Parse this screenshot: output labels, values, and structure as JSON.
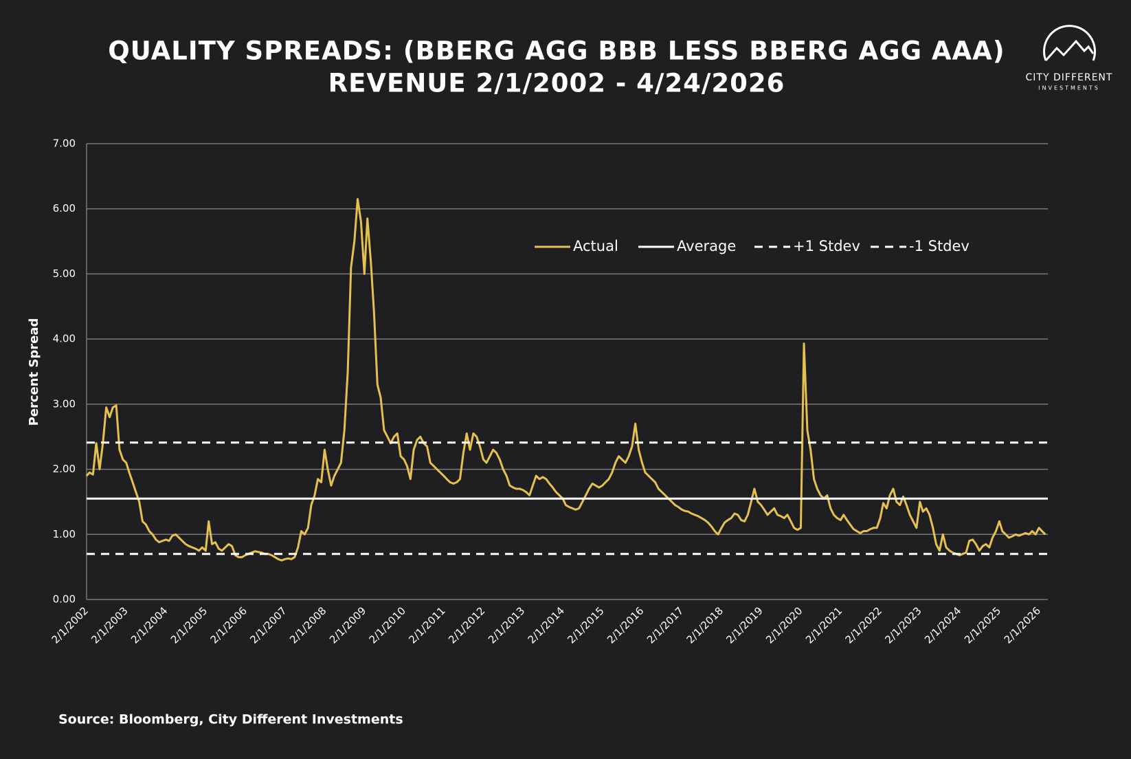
{
  "chart_data": {
    "type": "line",
    "title": "QUALITY SPREADS: (BBERG AGG BBB LESS BBERG AGG AAA)",
    "subtitle": "REVENUE 2/1/2002 - 4/24/2026",
    "y_label": "Percent Spread",
    "source": "Source: Bloomberg, City Different Investments",
    "logo": {
      "name": "CITY DIFFERENT",
      "sub": "INVESTMENTS"
    },
    "legend": "top-right",
    "grid": true,
    "ylim": [
      0,
      7
    ],
    "yticks": [
      {
        "value": 0,
        "label": "0.00"
      },
      {
        "value": 1,
        "label": "1.00"
      },
      {
        "value": 2,
        "label": "2.00"
      },
      {
        "value": 3,
        "label": "3.00"
      },
      {
        "value": 4,
        "label": "4.00"
      },
      {
        "value": 5,
        "label": "5.00"
      },
      {
        "value": 6,
        "label": "6.00"
      },
      {
        "value": 7,
        "label": "7.00"
      }
    ],
    "xlim": [
      "2/1/2002",
      "4/24/2026"
    ],
    "xticks": [
      "2/1/2002",
      "2/1/2003",
      "2/1/2004",
      "2/1/2005",
      "2/1/2006",
      "2/1/2007",
      "2/1/2008",
      "2/1/2009",
      "2/1/2010",
      "2/1/2011",
      "2/1/2012",
      "2/1/2013",
      "2/1/2014",
      "2/1/2015",
      "2/1/2016",
      "2/1/2017",
      "2/1/2018",
      "2/1/2019",
      "2/1/2020",
      "2/1/2021",
      "2/1/2022",
      "2/1/2023",
      "2/1/2024",
      "2/1/2025",
      "2/1/2026"
    ],
    "x": [
      "2/1/2002",
      "3/1/2002",
      "4/1/2002",
      "5/1/2002",
      "6/1/2002",
      "7/1/2002",
      "8/1/2002",
      "9/1/2002",
      "10/1/2002",
      "11/1/2002",
      "12/1/2002",
      "1/1/2003",
      "2/1/2003",
      "3/1/2003",
      "4/1/2003",
      "5/1/2003",
      "6/1/2003",
      "7/1/2003",
      "8/1/2003",
      "9/1/2003",
      "10/1/2003",
      "11/1/2003",
      "12/1/2003",
      "1/1/2004",
      "2/1/2004",
      "3/1/2004",
      "4/1/2004",
      "5/1/2004",
      "6/1/2004",
      "7/1/2004",
      "8/1/2004",
      "9/1/2004",
      "10/1/2004",
      "11/1/2004",
      "12/1/2004",
      "1/1/2005",
      "2/1/2005",
      "3/1/2005",
      "4/1/2005",
      "5/1/2005",
      "6/1/2005",
      "7/1/2005",
      "8/1/2005",
      "9/1/2005",
      "10/1/2005",
      "11/1/2005",
      "12/1/2005",
      "1/1/2006",
      "2/1/2006",
      "3/1/2006",
      "4/1/2006",
      "5/1/2006",
      "6/1/2006",
      "7/1/2006",
      "8/1/2006",
      "9/1/2006",
      "10/1/2006",
      "11/1/2006",
      "12/1/2006",
      "1/1/2007",
      "2/1/2007",
      "3/1/2007",
      "4/1/2007",
      "5/1/2007",
      "6/1/2007",
      "7/1/2007",
      "8/1/2007",
      "9/1/2007",
      "10/1/2007",
      "11/1/2007",
      "12/1/2007",
      "1/1/2008",
      "2/1/2008",
      "3/1/2008",
      "4/1/2008",
      "5/1/2008",
      "6/1/2008",
      "7/1/2008",
      "8/1/2008",
      "9/1/2008",
      "10/1/2008",
      "11/1/2008",
      "12/1/2008",
      "1/1/2009",
      "2/1/2009",
      "3/1/2009",
      "4/1/2009",
      "5/1/2009",
      "6/1/2009",
      "7/1/2009",
      "8/1/2009",
      "9/1/2009",
      "10/1/2009",
      "11/1/2009",
      "12/1/2009",
      "1/1/2010",
      "2/1/2010",
      "3/1/2010",
      "4/1/2010",
      "5/1/2010",
      "6/1/2010",
      "7/1/2010",
      "8/1/2010",
      "9/1/2010",
      "10/1/2010",
      "11/1/2010",
      "12/1/2010",
      "1/1/2011",
      "2/1/2011",
      "3/1/2011",
      "4/1/2011",
      "5/1/2011",
      "6/1/2011",
      "7/1/2011",
      "8/1/2011",
      "9/1/2011",
      "10/1/2011",
      "11/1/2011",
      "12/1/2011",
      "1/1/2012",
      "2/1/2012",
      "3/1/2012",
      "4/1/2012",
      "5/1/2012",
      "6/1/2012",
      "7/1/2012",
      "8/1/2012",
      "9/1/2012",
      "10/1/2012",
      "11/1/2012",
      "12/1/2012",
      "1/1/2013",
      "2/1/2013",
      "3/1/2013",
      "4/1/2013",
      "5/1/2013",
      "6/1/2013",
      "7/1/2013",
      "8/1/2013",
      "9/1/2013",
      "10/1/2013",
      "11/1/2013",
      "12/1/2013",
      "1/1/2014",
      "2/1/2014",
      "3/1/2014",
      "4/1/2014",
      "5/1/2014",
      "6/1/2014",
      "7/1/2014",
      "8/1/2014",
      "9/1/2014",
      "10/1/2014",
      "11/1/2014",
      "12/1/2014",
      "1/1/2015",
      "2/1/2015",
      "3/1/2015",
      "4/1/2015",
      "5/1/2015",
      "6/1/2015",
      "7/1/2015",
      "8/1/2015",
      "9/1/2015",
      "10/1/2015",
      "11/1/2015",
      "12/1/2015",
      "1/1/2016",
      "2/1/2016",
      "3/1/2016",
      "4/1/2016",
      "5/1/2016",
      "6/1/2016",
      "7/1/2016",
      "8/1/2016",
      "9/1/2016",
      "10/1/2016",
      "11/1/2016",
      "12/1/2016",
      "1/1/2017",
      "2/1/2017",
      "3/1/2017",
      "4/1/2017",
      "5/1/2017",
      "6/1/2017",
      "7/1/2017",
      "8/1/2017",
      "9/1/2017",
      "10/1/2017",
      "11/1/2017",
      "12/1/2017",
      "1/1/2018",
      "2/1/2018",
      "3/1/2018",
      "4/1/2018",
      "5/1/2018",
      "6/1/2018",
      "7/1/2018",
      "8/1/2018",
      "9/1/2018",
      "10/1/2018",
      "11/1/2018",
      "12/1/2018",
      "1/1/2019",
      "2/1/2019",
      "3/1/2019",
      "4/1/2019",
      "5/1/2019",
      "6/1/2019",
      "7/1/2019",
      "8/1/2019",
      "9/1/2019",
      "10/1/2019",
      "11/1/2019",
      "12/1/2019",
      "1/1/2020",
      "2/1/2020",
      "3/1/2020",
      "4/1/2020",
      "5/1/2020",
      "6/1/2020",
      "7/1/2020",
      "8/1/2020",
      "9/1/2020",
      "10/1/2020",
      "11/1/2020",
      "12/1/2020",
      "1/1/2021",
      "2/1/2021",
      "3/1/2021",
      "4/1/2021",
      "5/1/2021",
      "6/1/2021",
      "7/1/2021",
      "8/1/2021",
      "9/1/2021",
      "10/1/2021",
      "11/1/2021",
      "12/1/2021",
      "1/1/2022",
      "2/1/2022",
      "3/1/2022",
      "4/1/2022",
      "5/1/2022",
      "6/1/2022",
      "7/1/2022",
      "8/1/2022",
      "9/1/2022",
      "10/1/2022",
      "11/1/2022",
      "12/1/2022",
      "1/1/2023",
      "2/1/2023",
      "3/1/2023",
      "4/1/2023",
      "5/1/2023",
      "6/1/2023",
      "7/1/2023",
      "8/1/2023",
      "9/1/2023",
      "10/1/2023",
      "11/1/2023",
      "12/1/2023",
      "1/1/2024",
      "2/1/2024",
      "3/1/2024",
      "4/1/2024",
      "5/1/2024",
      "6/1/2024",
      "7/1/2024",
      "8/1/2024",
      "9/1/2024",
      "10/1/2024",
      "11/1/2024",
      "12/1/2024",
      "1/1/2025",
      "2/1/2025",
      "3/1/2025",
      "4/1/2025",
      "5/1/2025",
      "6/1/2025",
      "7/1/2025",
      "8/1/2025",
      "9/1/2025",
      "10/1/2025",
      "11/1/2025",
      "12/1/2025",
      "1/1/2026",
      "2/1/2026",
      "3/1/2026",
      "4/1/2026"
    ],
    "series": [
      {
        "name": "Actual",
        "color": "#e6c14f",
        "dash": false,
        "values": [
          1.9,
          1.95,
          1.92,
          2.4,
          2.0,
          2.4,
          2.95,
          2.8,
          2.95,
          2.98,
          2.3,
          2.15,
          2.1,
          1.95,
          1.8,
          1.65,
          1.5,
          1.2,
          1.15,
          1.05,
          1.0,
          0.92,
          0.88,
          0.9,
          0.92,
          0.9,
          0.98,
          1.0,
          0.95,
          0.9,
          0.85,
          0.82,
          0.8,
          0.78,
          0.75,
          0.8,
          0.75,
          1.2,
          0.85,
          0.88,
          0.78,
          0.75,
          0.8,
          0.85,
          0.82,
          0.68,
          0.65,
          0.65,
          0.68,
          0.7,
          0.72,
          0.74,
          0.73,
          0.72,
          0.7,
          0.7,
          0.68,
          0.65,
          0.62,
          0.6,
          0.62,
          0.63,
          0.62,
          0.65,
          0.8,
          1.05,
          1.0,
          1.1,
          1.45,
          1.6,
          1.85,
          1.8,
          2.3,
          2.0,
          1.75,
          1.9,
          2.0,
          2.1,
          2.6,
          3.5,
          5.1,
          5.5,
          6.15,
          5.8,
          5.0,
          5.85,
          5.2,
          4.4,
          3.3,
          3.1,
          2.6,
          2.5,
          2.4,
          2.5,
          2.55,
          2.2,
          2.15,
          2.05,
          1.85,
          2.3,
          2.45,
          2.5,
          2.4,
          2.35,
          2.1,
          2.05,
          2.0,
          1.95,
          1.9,
          1.85,
          1.8,
          1.78,
          1.8,
          1.85,
          2.25,
          2.55,
          2.3,
          2.55,
          2.5,
          2.35,
          2.15,
          2.1,
          2.2,
          2.3,
          2.25,
          2.15,
          2.0,
          1.9,
          1.75,
          1.72,
          1.7,
          1.7,
          1.68,
          1.65,
          1.6,
          1.75,
          1.9,
          1.85,
          1.88,
          1.85,
          1.78,
          1.72,
          1.65,
          1.6,
          1.55,
          1.45,
          1.42,
          1.4,
          1.38,
          1.4,
          1.5,
          1.6,
          1.7,
          1.78,
          1.75,
          1.72,
          1.75,
          1.8,
          1.85,
          1.95,
          2.1,
          2.2,
          2.15,
          2.1,
          2.2,
          2.35,
          2.7,
          2.3,
          2.1,
          1.95,
          1.9,
          1.85,
          1.8,
          1.7,
          1.65,
          1.6,
          1.55,
          1.5,
          1.45,
          1.42,
          1.38,
          1.36,
          1.35,
          1.32,
          1.3,
          1.28,
          1.25,
          1.22,
          1.18,
          1.12,
          1.05,
          1.0,
          1.1,
          1.18,
          1.22,
          1.25,
          1.32,
          1.3,
          1.22,
          1.2,
          1.3,
          1.5,
          1.7,
          1.5,
          1.45,
          1.38,
          1.3,
          1.35,
          1.4,
          1.3,
          1.28,
          1.25,
          1.3,
          1.2,
          1.1,
          1.07,
          1.1,
          3.93,
          2.6,
          2.3,
          1.85,
          1.7,
          1.6,
          1.55,
          1.6,
          1.4,
          1.3,
          1.25,
          1.22,
          1.3,
          1.22,
          1.15,
          1.08,
          1.05,
          1.02,
          1.05,
          1.05,
          1.08,
          1.1,
          1.1,
          1.25,
          1.48,
          1.4,
          1.6,
          1.7,
          1.5,
          1.45,
          1.58,
          1.45,
          1.3,
          1.2,
          1.1,
          1.5,
          1.35,
          1.4,
          1.3,
          1.1,
          0.85,
          0.75,
          1.0,
          0.8,
          0.75,
          0.72,
          0.7,
          0.68,
          0.7,
          0.72,
          0.9,
          0.92,
          0.85,
          0.75,
          0.82,
          0.85,
          0.8,
          0.95,
          1.05,
          1.2,
          1.05,
          1.0,
          0.95,
          0.97,
          1.0,
          0.98,
          1.0,
          1.02,
          1.0,
          1.05,
          1.0,
          1.1,
          1.05,
          1.0
        ]
      },
      {
        "name": "Average",
        "color": "#ffffff",
        "dash": false,
        "value": 1.55
      },
      {
        "name": "+1 Stdev",
        "color": "#ffffff",
        "dash": true,
        "value": 2.41
      },
      {
        "name": "-1 Stdev",
        "color": "#ffffff",
        "dash": true,
        "value": 0.7
      }
    ]
  }
}
